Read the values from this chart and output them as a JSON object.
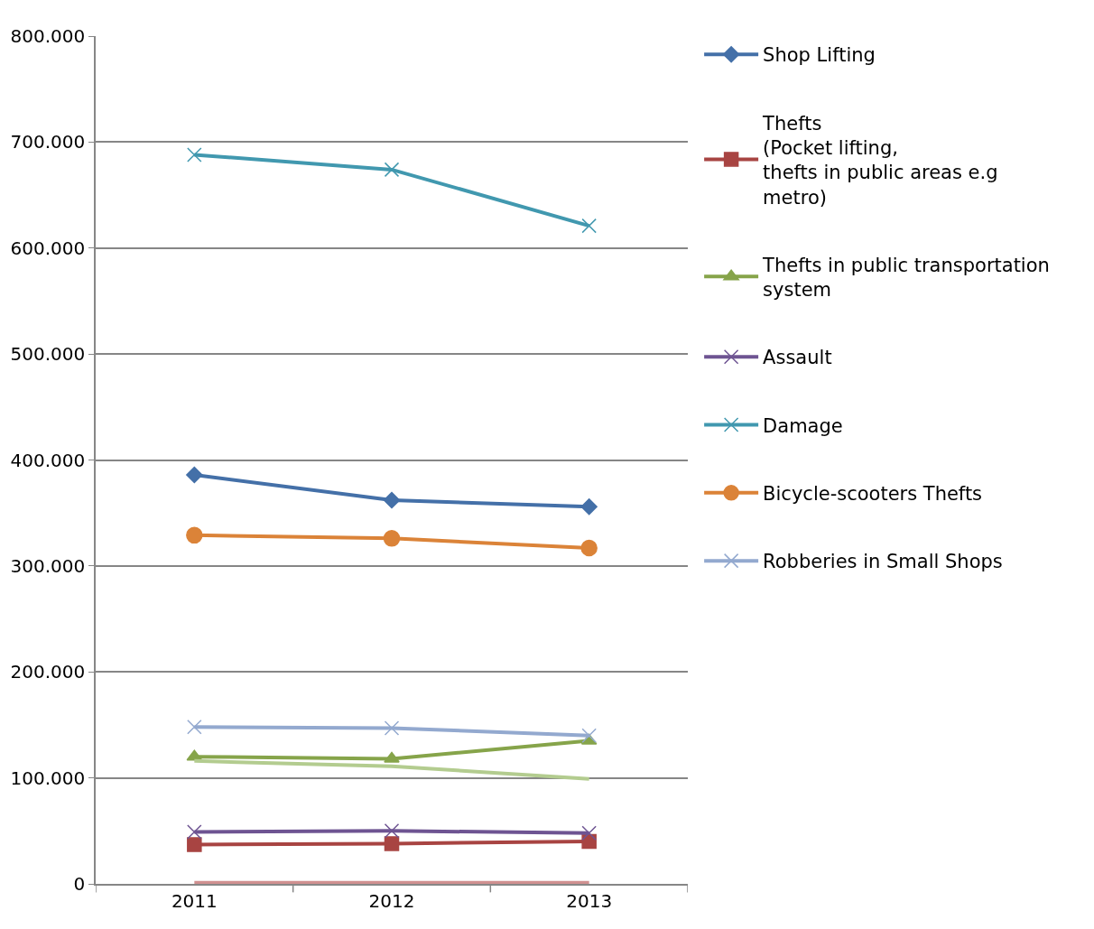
{
  "chart_data": {
    "type": "line",
    "categories": [
      "2011",
      "2012",
      "2013"
    ],
    "ylim": [
      0,
      800000
    ],
    "yticks": [
      {
        "value": 0,
        "label": "0"
      },
      {
        "value": 100000,
        "label": "100.000"
      },
      {
        "value": 200000,
        "label": "200.000"
      },
      {
        "value": 300000,
        "label": "300.000"
      },
      {
        "value": 400000,
        "label": "400.000"
      },
      {
        "value": 500000,
        "label": "500.000"
      },
      {
        "value": 600000,
        "label": "600.000"
      },
      {
        "value": 700000,
        "label": "700.000"
      },
      {
        "value": 800000,
        "label": "800.000"
      }
    ],
    "grid": "y",
    "legend": "right",
    "series": [
      {
        "name": "Shop Lifting",
        "color": "#4470a8",
        "marker": "diamond",
        "values": [
          386000,
          362000,
          356000
        ]
      },
      {
        "name": "Thefts\n(Pocket lifting,\nthefts in public areas e.g\nmetro)",
        "color": "#a84442",
        "marker": "square",
        "values": [
          37000,
          38000,
          40000
        ]
      },
      {
        "name": "Thefts in public transportation\nsystem",
        "color": "#86a44a",
        "marker": "triangle",
        "values": [
          120000,
          118000,
          135000
        ]
      },
      {
        "name": "Assault",
        "color": "#6e5492",
        "marker": "cross",
        "values": [
          49000,
          50000,
          48000
        ]
      },
      {
        "name": "Damage",
        "color": "#4198af",
        "marker": "cross",
        "values": [
          688000,
          674000,
          621000
        ]
      },
      {
        "name": "Bicycle-scooters Thefts",
        "color": "#db8338",
        "marker": "circle",
        "values": [
          329000,
          326000,
          317000
        ]
      },
      {
        "name": "Robberies in Small Shops",
        "color": "#93a9cf",
        "marker": "cross",
        "values": [
          148000,
          147000,
          140000
        ]
      },
      {
        "color": "#b3cc8f",
        "marker": "none",
        "values": [
          116000,
          111000,
          99000
        ]
      },
      {
        "color": "#d09090",
        "marker": "none",
        "values": [
          1000,
          1000,
          1000
        ]
      }
    ]
  }
}
